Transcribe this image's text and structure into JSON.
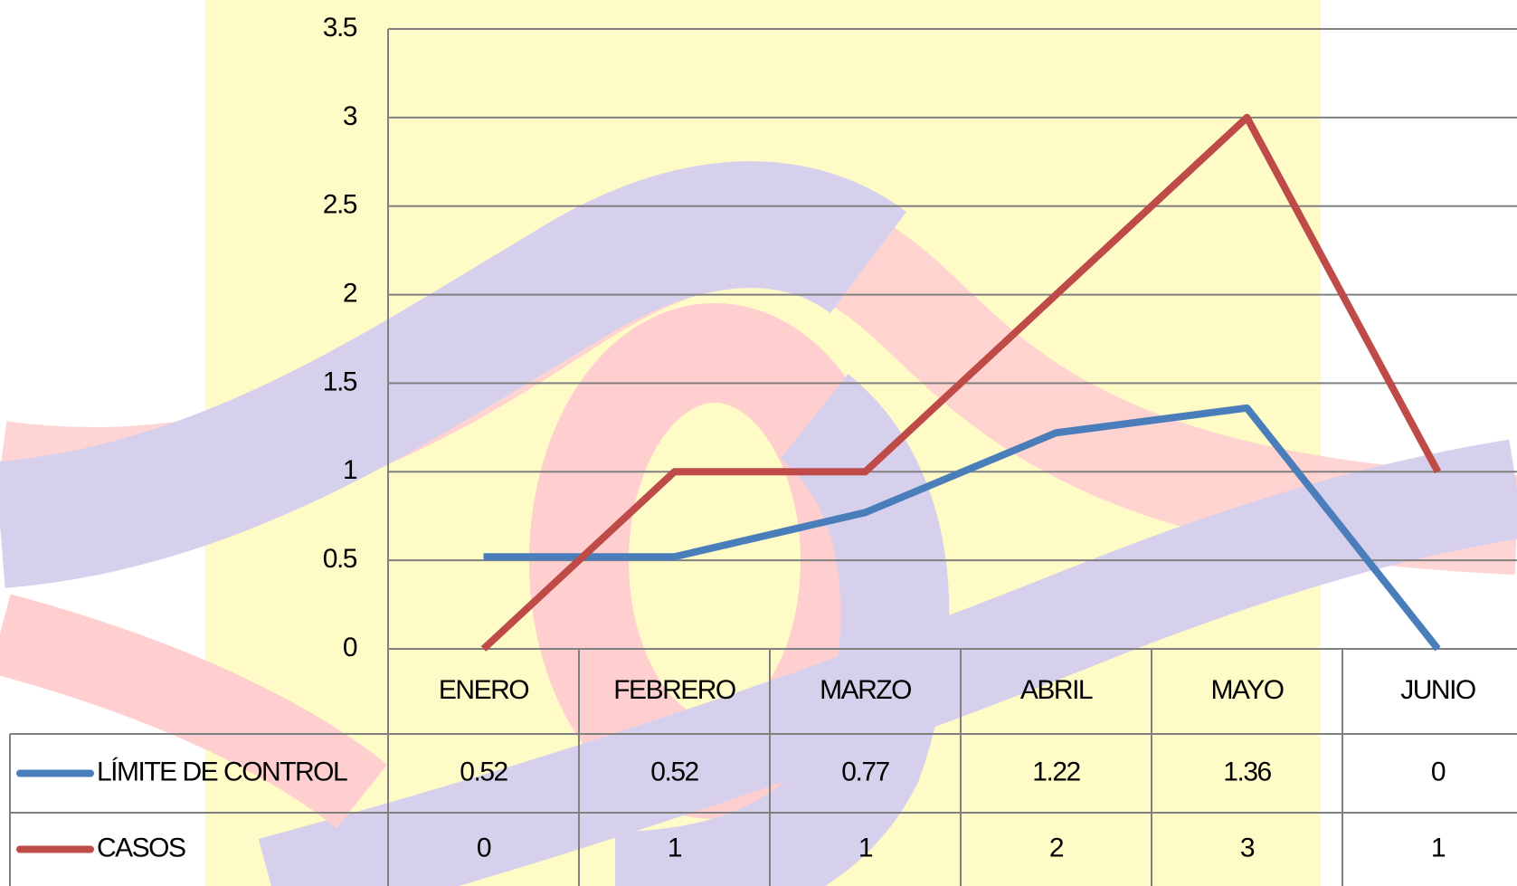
{
  "chart_data": {
    "type": "line",
    "categories": [
      "ENERO",
      "FEBRERO",
      "MARZO",
      "ABRIL",
      "MAYO",
      "JUNIO"
    ],
    "series": [
      {
        "name": "LÍMITE DE CONTROL",
        "color": "#4a7ebb",
        "values": [
          0.52,
          0.52,
          0.77,
          1.22,
          1.36,
          0
        ]
      },
      {
        "name": "CASOS",
        "color": "#be4b48",
        "values": [
          0,
          1,
          1,
          2,
          3,
          1
        ]
      }
    ],
    "ylim": [
      0,
      3.5
    ],
    "yticks": [
      0,
      0.5,
      1,
      1.5,
      2,
      2.5,
      3,
      3.5
    ],
    "grid": true,
    "data_table": true
  }
}
